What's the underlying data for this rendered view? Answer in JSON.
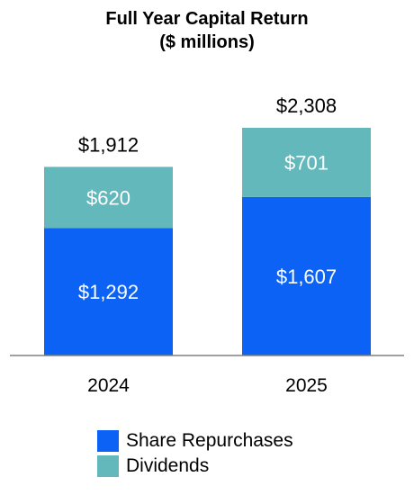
{
  "chart_data": {
    "type": "bar",
    "stacked": true,
    "title": "Full Year Capital Return",
    "subtitle": "($ millions)",
    "categories": [
      "2024",
      "2025"
    ],
    "series": [
      {
        "name": "Share Repurchases",
        "values": [
          1292,
          1607
        ],
        "labels": [
          "$1,292",
          "$1,607"
        ],
        "color": "#0b62f4"
      },
      {
        "name": "Dividends",
        "values": [
          620,
          701
        ],
        "labels": [
          "$620",
          "$701"
        ],
        "color": "#62b8bb"
      }
    ],
    "totals": [
      1912,
      2308
    ],
    "total_labels": [
      "$1,912",
      "$2,308"
    ],
    "legend_position": "bottom",
    "grid": false
  }
}
